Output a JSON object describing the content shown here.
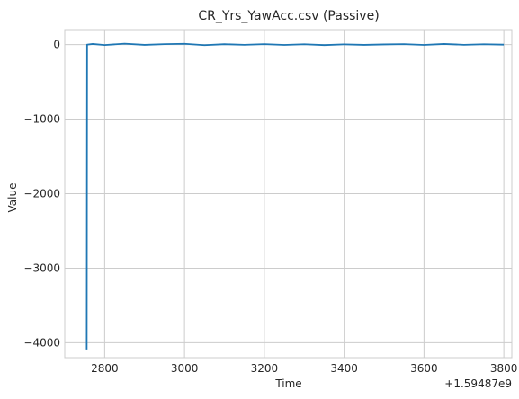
{
  "chart_data": {
    "type": "line",
    "title": "CR_Yrs_YawAcc.csv (Passive)",
    "xlabel": "Time",
    "ylabel": "Value",
    "x_offset_label": "+1.59487e9",
    "xlim": [
      2700,
      3820
    ],
    "ylim": [
      -4200,
      200
    ],
    "x_ticks": [
      2800,
      3000,
      3200,
      3400,
      3600,
      3800
    ],
    "x_tick_labels": [
      "2800",
      "3000",
      "3200",
      "3400",
      "3600",
      "3800"
    ],
    "y_ticks": [
      0,
      -1000,
      -2000,
      -3000,
      -4000
    ],
    "y_tick_labels": [
      "0",
      "−1000",
      "−2000",
      "−3000",
      "−4000"
    ],
    "grid": true,
    "line_color": "#1f77b4",
    "series": [
      {
        "x": [
          2755,
          2756,
          2757,
          2770,
          2800,
          2850,
          2900,
          2950,
          3000,
          3050,
          3100,
          3150,
          3200,
          3250,
          3300,
          3350,
          3400,
          3450,
          3500,
          3550,
          3600,
          3650,
          3700,
          3750,
          3800
        ],
        "values": [
          -4090,
          0,
          0,
          8,
          -6,
          12,
          -4,
          6,
          10,
          -8,
          5,
          -3,
          6,
          -5,
          4,
          -7,
          3,
          -4,
          2,
          6,
          -5,
          8,
          -3,
          4,
          -1
        ]
      }
    ]
  }
}
